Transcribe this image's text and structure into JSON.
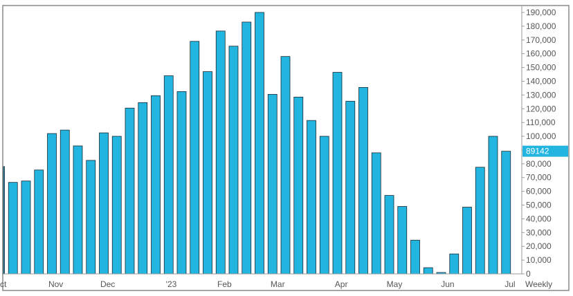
{
  "chart_data": {
    "type": "bar",
    "frequency_label": "Weekly",
    "last_value_label": "89142",
    "x_month_labels": [
      "Oct",
      "Nov",
      "Dec",
      "'23",
      "Feb",
      "Mar",
      "Apr",
      "May",
      "Jun",
      "Jul"
    ],
    "y_ticks": [
      0,
      10000,
      20000,
      30000,
      40000,
      50000,
      60000,
      70000,
      80000,
      90000,
      100000,
      110000,
      120000,
      130000,
      140000,
      150000,
      160000,
      170000,
      180000,
      190000
    ],
    "y_tick_labels": [
      "0",
      "10,000",
      "20,000",
      "30,000",
      "40,000",
      "50,000",
      "60,000",
      "70,000",
      "80,000",
      "90,000",
      "100,000",
      "110,000",
      "120,000",
      "130,000",
      "140,000",
      "150,000",
      "160,000",
      "170,000",
      "180,000",
      "190,000"
    ],
    "ylim": [
      0,
      191000
    ],
    "values": [
      78000,
      66500,
      67500,
      75500,
      102000,
      104500,
      93000,
      82500,
      102500,
      100000,
      120500,
      124500,
      129500,
      144000,
      132500,
      169000,
      147000,
      176500,
      165500,
      183000,
      190000,
      130500,
      158000,
      128500,
      111500,
      100000,
      146500,
      125500,
      135500,
      88000,
      57000,
      49000,
      24500,
      4500,
      1000,
      14500,
      48500,
      77500,
      100000,
      89142
    ],
    "bar_color": "#22b5e0",
    "bar_edge_color": "#1a2a33",
    "last_value_color": "#22b5e0",
    "grid": false,
    "legend": "none"
  }
}
